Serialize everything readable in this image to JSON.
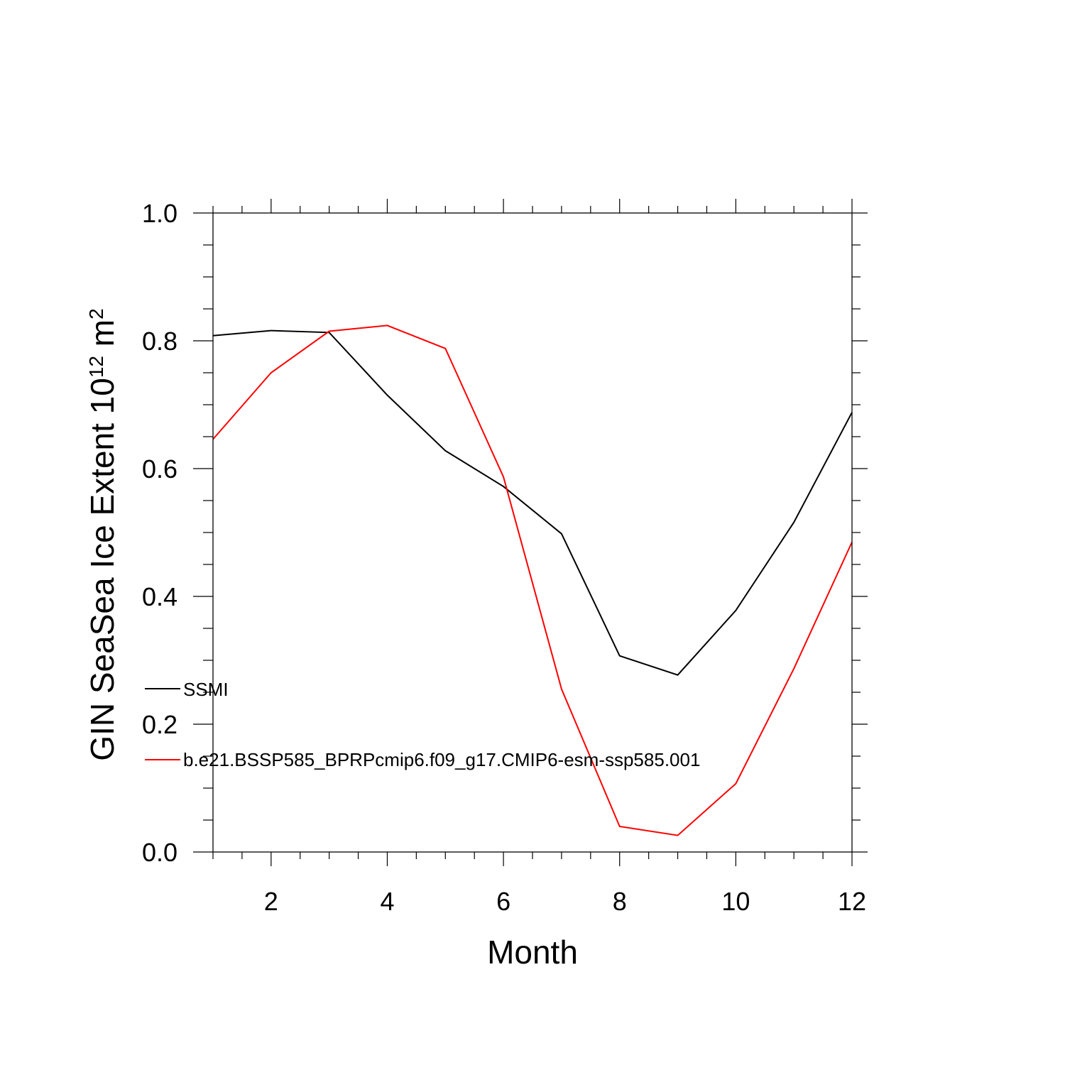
{
  "chart_data": {
    "type": "line",
    "title": "",
    "xlabel": "Month",
    "ylabel": {
      "main": "GIN SeaSea Ice Extent 10",
      "exp": "12",
      "unit": " m",
      "unit_exp": "2"
    },
    "xlim": [
      1,
      12
    ],
    "ylim": [
      0.0,
      1.0
    ],
    "x_ticks": [
      2,
      4,
      6,
      8,
      10,
      12
    ],
    "x_tick_labels": [
      "2",
      "4",
      "6",
      "8",
      "10",
      "12"
    ],
    "y_ticks": [
      0.0,
      0.2,
      0.4,
      0.6,
      0.8,
      1.0
    ],
    "y_tick_labels": [
      "0.0",
      "0.2",
      "0.4",
      "0.6",
      "0.8",
      "1.0"
    ],
    "grid": false,
    "legend_placement": "lower-left",
    "x": [
      1,
      2,
      3,
      4,
      5,
      6,
      7,
      8,
      9,
      10,
      11,
      12
    ],
    "series": [
      {
        "name": "SSMI",
        "color": "#000000",
        "values": [
          0.808,
          0.816,
          0.813,
          0.715,
          0.628,
          0.572,
          0.498,
          0.307,
          0.277,
          0.378,
          0.516,
          0.688
        ]
      },
      {
        "name": "b.e21.BSSP585_BPRPcmip6.f09_g17.CMIP6-esm-ssp585.001",
        "color": "#ff0000",
        "values": [
          0.646,
          0.75,
          0.815,
          0.824,
          0.788,
          0.587,
          0.255,
          0.04,
          0.026,
          0.107,
          0.287,
          0.485
        ]
      }
    ]
  }
}
